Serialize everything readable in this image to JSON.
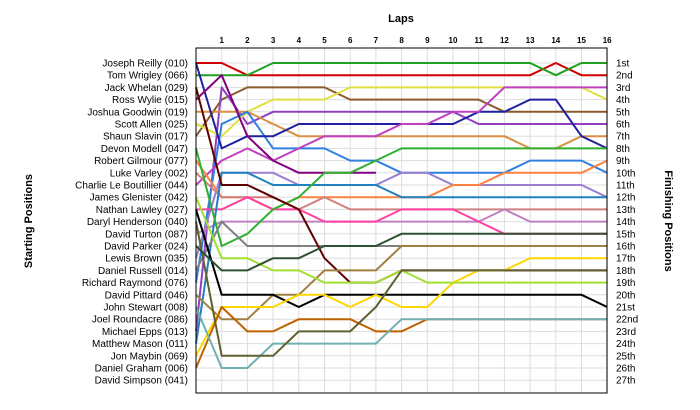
{
  "chart_data": {
    "type": "line",
    "title": "",
    "xlabel": "Laps",
    "ylabel_left": "Starting Positions",
    "ylabel_right": "Finishing Positions",
    "x": [
      0,
      1,
      2,
      3,
      4,
      5,
      6,
      7,
      8,
      9,
      10,
      11,
      12,
      13,
      14,
      15,
      16
    ],
    "lap_ticks": [
      "1",
      "2",
      "3",
      "4",
      "5",
      "6",
      "7",
      "8",
      "9",
      "10",
      "11",
      "12",
      "13",
      "14",
      "15",
      "16"
    ],
    "ylim": [
      1,
      27
    ],
    "grid": true,
    "starting_positions": [
      "Joseph Reilly (010)",
      "Tom Wrigley (066)",
      "Jack Whelan (029)",
      "Ross Wylie (015)",
      "Joshua Goodwin (019)",
      "Scott Allen (025)",
      "Shaun Slavin (017)",
      "Devon Modell (047)",
      "Robert Gilmour (077)",
      "Luke Varley (002)",
      "Charlie Le Boutillier (044)",
      "James Glenister (042)",
      "Nathan Lawley (027)",
      "Daryl Henderson (040)",
      "David Turton (087)",
      "David Parker (024)",
      "Lewis Brown (035)",
      "Daniel Russell (014)",
      "Richard Raymond (076)",
      "David Pittard (046)",
      "John Stewart (008)",
      "Joel Roundacre (086)",
      "Michael Epps (013)",
      "Matthew Mason (011)",
      "Jon Maybin (069)",
      "Daniel Graham (006)",
      "David Simpson (041)"
    ],
    "finishing_positions": [
      "1st",
      "2nd",
      "3rd",
      "4th",
      "5th",
      "6th",
      "7th",
      "8th",
      "9th",
      "10th",
      "11th",
      "12th",
      "13th",
      "14th",
      "15th",
      "16th",
      "17th",
      "18th",
      "19th",
      "20th",
      "21st",
      "22nd",
      "23rd",
      "24th",
      "25th",
      "26th",
      "27th"
    ],
    "series": [
      {
        "color": "#d00000",
        "values": [
          1,
          1,
          2,
          2,
          2,
          2,
          2,
          2,
          2,
          2,
          2,
          2,
          2,
          2,
          1,
          2,
          2
        ]
      },
      {
        "color": "#20a020",
        "values": [
          2,
          2,
          2,
          1,
          1,
          1,
          1,
          1,
          1,
          1,
          1,
          1,
          1,
          1,
          2,
          1,
          1
        ]
      },
      {
        "color": "#8b5a2b",
        "values": [
          7,
          4,
          3,
          3,
          3,
          3,
          4,
          4,
          4,
          4,
          4,
          4,
          5,
          5,
          5,
          5,
          5
        ]
      },
      {
        "color": "#9040c0",
        "values": [
          23,
          3,
          6,
          5,
          5,
          5,
          5,
          5,
          5,
          5,
          5,
          6,
          6,
          6,
          6,
          6,
          6
        ]
      },
      {
        "color": "#d89040",
        "values": [
          5,
          5,
          5,
          6,
          7,
          7,
          7,
          7,
          7,
          7,
          7,
          7,
          7,
          8,
          8,
          7,
          7
        ]
      },
      {
        "color": "#e0e040",
        "values": [
          6,
          7,
          5,
          4,
          4,
          4,
          3,
          3,
          3,
          3,
          3,
          3,
          3,
          3,
          3,
          3,
          4
        ]
      },
      {
        "color": "#3080e0",
        "values": [
          19,
          6,
          5,
          8,
          8,
          8,
          9,
          9,
          10,
          10,
          10,
          10,
          10,
          9,
          9,
          9,
          10
        ]
      },
      {
        "color": "#2020a0",
        "values": [
          1,
          8,
          7,
          7,
          6,
          6,
          6,
          6,
          6,
          6,
          6,
          5,
          5,
          4,
          4,
          7,
          8
        ]
      },
      {
        "color": "#c040c0",
        "values": [
          11,
          9,
          8,
          9,
          8,
          7,
          7,
          7,
          6,
          6,
          5,
          5,
          3,
          3,
          3,
          3,
          3
        ]
      },
      {
        "color": "#800080",
        "values": [
          4,
          2,
          7,
          9,
          10,
          10,
          10,
          10,
          null,
          null,
          null,
          null,
          null,
          null,
          null,
          null,
          null
        ]
      },
      {
        "color": "#9a7fd0",
        "values": [
          17,
          10,
          10,
          10,
          11,
          11,
          11,
          11,
          10,
          10,
          11,
          11,
          11,
          11,
          11,
          11,
          12
        ]
      },
      {
        "color": "#ff8040",
        "values": [
          9,
          12,
          12,
          13,
          12,
          12,
          12,
          12,
          12,
          12,
          11,
          11,
          10,
          10,
          10,
          10,
          9
        ]
      },
      {
        "color": "#d08080",
        "values": [
          10,
          12,
          12,
          12,
          13,
          12,
          13,
          13,
          13,
          13,
          13,
          13,
          13,
          13,
          13,
          13,
          13
        ]
      },
      {
        "color": "#c080c0",
        "values": [
          15,
          14,
          14,
          14,
          14,
          14,
          14,
          14,
          14,
          14,
          14,
          14,
          13,
          14,
          14,
          14,
          14
        ]
      },
      {
        "color": "#ff40a0",
        "values": [
          13,
          13,
          12,
          13,
          13,
          14,
          14,
          14,
          13,
          13,
          13,
          14,
          15,
          15,
          15,
          15,
          15
        ]
      },
      {
        "color": "#2080c0",
        "values": [
          24,
          10,
          10,
          11,
          11,
          11,
          11,
          11,
          12,
          12,
          12,
          12,
          12,
          12,
          12,
          12,
          12
        ]
      },
      {
        "color": "#30b030",
        "values": [
          8,
          16,
          15,
          13,
          12,
          10,
          10,
          9,
          8,
          8,
          8,
          8,
          8,
          8,
          8,
          8,
          8
        ]
      },
      {
        "color": "#808080",
        "values": [
          18,
          14,
          16,
          16,
          16,
          16,
          16,
          16,
          16,
          16,
          16,
          16,
          16,
          16,
          16,
          16,
          16
        ]
      },
      {
        "color": "#600000",
        "values": [
          3,
          11,
          11,
          12,
          13,
          17,
          19,
          19,
          18,
          18,
          18,
          18,
          18,
          18,
          18,
          18,
          18
        ]
      },
      {
        "color": "#a08040",
        "values": [
          20,
          22,
          22,
          20,
          20,
          18,
          18,
          18,
          16,
          16,
          16,
          16,
          16,
          16,
          16,
          16,
          16
        ]
      },
      {
        "color": "#000000",
        "values": [
          13,
          20,
          20,
          20,
          21,
          20,
          20,
          20,
          20,
          20,
          20,
          20,
          20,
          20,
          20,
          20,
          21
        ]
      },
      {
        "color": "#ffd700",
        "values": [
          25,
          21,
          21,
          21,
          20,
          20,
          21,
          20,
          21,
          21,
          19,
          18,
          18,
          17,
          17,
          17,
          17
        ]
      },
      {
        "color": "#c06000",
        "values": [
          26,
          21,
          23,
          23,
          22,
          22,
          22,
          23,
          23,
          22,
          22,
          22,
          22,
          22,
          22,
          22,
          22
        ]
      },
      {
        "color": "#a0e030",
        "values": [
          12,
          17,
          17,
          18,
          18,
          19,
          19,
          19,
          18,
          19,
          19,
          19,
          19,
          19,
          19,
          19,
          19
        ]
      },
      {
        "color": "#70b0b0",
        "values": [
          21,
          26,
          26,
          24,
          24,
          24,
          24,
          24,
          22,
          22,
          22,
          22,
          22,
          22,
          22,
          22,
          22
        ]
      },
      {
        "color": "#606030",
        "values": [
          14,
          25,
          25,
          25,
          23,
          23,
          23,
          21,
          18,
          18,
          18,
          18,
          18,
          18,
          18,
          18,
          18
        ]
      },
      {
        "color": "#305030",
        "values": [
          16,
          18,
          18,
          17,
          17,
          16,
          16,
          16,
          15,
          15,
          15,
          15,
          15,
          15,
          15,
          15,
          15
        ]
      }
    ]
  }
}
